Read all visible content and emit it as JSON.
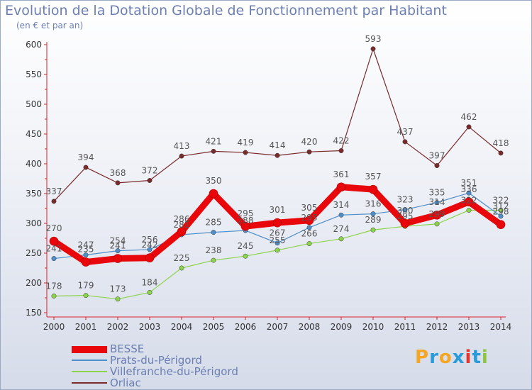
{
  "header": {
    "title": "Evolution de la Dotation Globale de Fonctionnement par Habitant",
    "subtitle": "(en € et par an)"
  },
  "logo": {
    "text": "Proxiti",
    "colors": [
      "#f5a623",
      "#2a9ad8",
      "#f5a623",
      "#2a9ad8",
      "#e0362c",
      "#2a9ad8",
      "#8cc63f"
    ]
  },
  "chart_data": {
    "type": "line",
    "title": "Evolution de la Dotation Globale de Fonctionnement par Habitant",
    "subtitle": "(en € et par an)",
    "xlabel": "",
    "ylabel": "",
    "ylim": [
      150,
      600
    ],
    "yticks": [
      150,
      200,
      250,
      300,
      350,
      400,
      450,
      500,
      550,
      600
    ],
    "grid": false,
    "legend_position": "bottom-left",
    "x": [
      "2000",
      "2001",
      "2002",
      "2003",
      "2004",
      "2005",
      "2006",
      "2007",
      "2008",
      "2009",
      "2010",
      "2011",
      "2012",
      "2013",
      "2014"
    ],
    "series": [
      {
        "name": "BESSE",
        "color": "#e8070a",
        "values": [
          270,
          235,
          241,
          242,
          286,
          350,
          295,
          301,
          305,
          361,
          357,
          300,
          314,
          336,
          298
        ],
        "labels": [
          "270",
          "235",
          "241",
          "242",
          "286",
          "350",
          "295",
          "301",
          "305",
          "361",
          "357",
          "300",
          "314",
          "336",
          "298"
        ]
      },
      {
        "name": "Prats-du-Périgord",
        "color": "#4f8fc9",
        "values": [
          241,
          247,
          254,
          256,
          281,
          285,
          288,
          267,
          293,
          314,
          316,
          323,
          335,
          351,
          312
        ],
        "labels": [
          "241",
          "247",
          "254",
          "256",
          "281",
          "285",
          "288",
          "267",
          "293",
          "314",
          "316",
          "323",
          "335",
          "351",
          "312"
        ]
      },
      {
        "name": "Villefranche-du-Périgord",
        "color": "#8cd44a",
        "values": [
          178,
          179,
          173,
          184,
          225,
          238,
          245,
          255,
          266,
          274,
          289,
          295,
          299,
          322,
          322
        ],
        "labels": [
          "178",
          "179",
          "173",
          "184",
          "225",
          "238",
          "245",
          "255",
          "266",
          "274",
          "289",
          "295",
          "299",
          "322",
          "322"
        ]
      },
      {
        "name": "Orliac",
        "color": "#7a2a2a",
        "values": [
          337,
          394,
          368,
          372,
          413,
          421,
          419,
          414,
          420,
          422,
          593,
          437,
          397,
          462,
          418
        ],
        "labels": [
          "337",
          "394",
          "368",
          "372",
          "413",
          "421",
          "419",
          "414",
          "420",
          "422",
          "593",
          "437",
          "397",
          "462",
          "418"
        ]
      }
    ]
  }
}
